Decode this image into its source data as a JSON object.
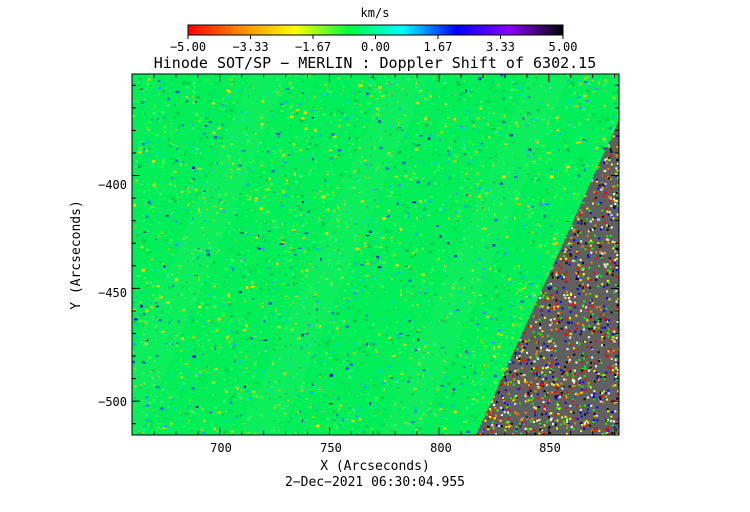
{
  "colorbar": {
    "unit": "km/s",
    "tick_labels": [
      "−5.00",
      "−3.33",
      "−1.67",
      "0.00",
      "1.67",
      "3.33",
      "5.00"
    ],
    "stops": [
      "#ff0000",
      "#ff8c00",
      "#ffff00",
      "#00ff40",
      "#00ffff",
      "#0000ff",
      "#8b00ff",
      "#000000"
    ]
  },
  "title": "Hinode SOT/SP − MERLIN : Doppler Shift of 6302.15",
  "x_axis": {
    "label": "X (Arcseconds)",
    "tick_labels": [
      "700",
      "750",
      "800",
      "850"
    ],
    "range": [
      660,
      882
    ]
  },
  "y_axis": {
    "label": "Y (Arcseconds)",
    "tick_labels": [
      "−400",
      "−450",
      "−500"
    ],
    "range": [
      -515,
      -355
    ]
  },
  "footer": {
    "timestamp": "2−Dec−2021 06:30:04.955"
  },
  "image": {
    "background_color": "#00ee58",
    "limb_noise_colors": [
      "#000000",
      "#ff0000",
      "#ffffff",
      "#0000ff",
      "#ffff00",
      "#00ff00",
      "#ff8800"
    ]
  }
}
